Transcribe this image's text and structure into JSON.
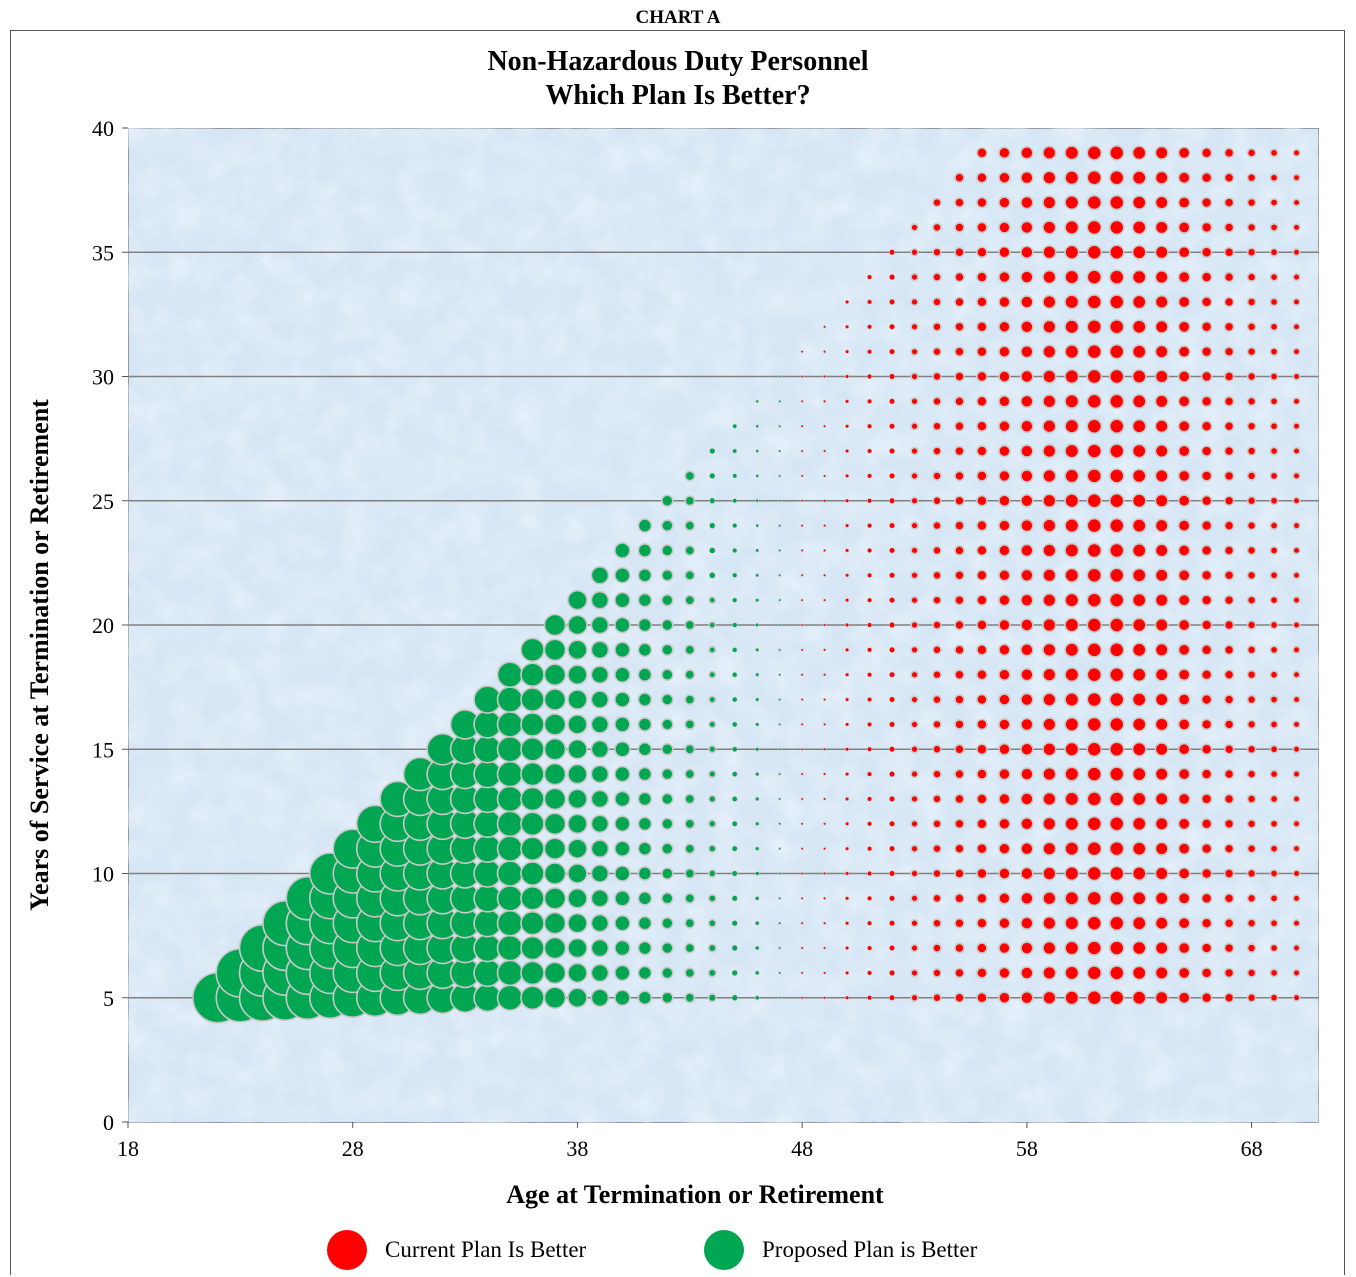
{
  "header": {
    "chart_label": "CHART A",
    "title_line1": "Non-Hazardous Duty Personnel",
    "title_line2": "Which Plan Is Better?"
  },
  "colors": {
    "current": "#ff0000",
    "proposed": "#00a651",
    "bubble_border": "#c8c8c8",
    "plot_bg": "#d6e6f5",
    "gridline": "#808080"
  },
  "legend": {
    "current_label": "Current Plan Is Better",
    "proposed_label": "Proposed Plan is Better"
  },
  "chart_data": {
    "type": "scatter",
    "subtype": "bubble",
    "title": "Non-Hazardous Duty Personnel Which Plan Is Better?",
    "xlabel": "Age at Termination or Retirement",
    "ylabel": "Years of Service at Termination or Retirement",
    "xlim": [
      18,
      71
    ],
    "ylim": [
      0,
      40
    ],
    "x_ticks": [
      "18",
      "28",
      "38",
      "48",
      "58",
      "68"
    ],
    "y_ticks": [
      "0",
      "5",
      "10",
      "15",
      "20",
      "25",
      "30",
      "35",
      "40"
    ],
    "grid": "horizontal",
    "legend_position": "bottom",
    "series": [
      {
        "name": "Current Plan Is Better",
        "color": "#ff0000",
        "points": "every integer age from 48 to 70 with years of service from 5 up to (age - 17), capped at 39; bubble size smallest near age 48, largest at ages 61-62"
      },
      {
        "name": "Proposed Plan is Better",
        "color": "#00a651",
        "points": "every integer age from 22 to 50 with years of service from 5 up to (age - 17); bubble size largest at age 22 decreasing toward age 48"
      }
    ],
    "rule": {
      "x_start": 22,
      "x_end": 70,
      "y_start": 5,
      "y_max": 39,
      "entry_age_min": 17,
      "crossover_age": 48
    },
    "size_profile": {
      "current": {
        "ages": [
          48,
          49,
          50,
          52,
          54,
          56,
          58,
          60,
          61,
          62,
          64,
          66,
          68,
          70
        ],
        "relative_size": [
          0.04,
          0.05,
          0.07,
          0.11,
          0.16,
          0.2,
          0.24,
          0.27,
          0.28,
          0.28,
          0.25,
          0.2,
          0.16,
          0.13
        ]
      },
      "proposed": {
        "ages": [
          22,
          24,
          26,
          28,
          30,
          32,
          34,
          36,
          38,
          40,
          42,
          44,
          46,
          47,
          48,
          50
        ],
        "relative_size": [
          1.0,
          0.93,
          0.86,
          0.78,
          0.7,
          0.62,
          0.54,
          0.46,
          0.38,
          0.3,
          0.22,
          0.15,
          0.08,
          0.04,
          0.02,
          0.06
        ]
      }
    }
  }
}
